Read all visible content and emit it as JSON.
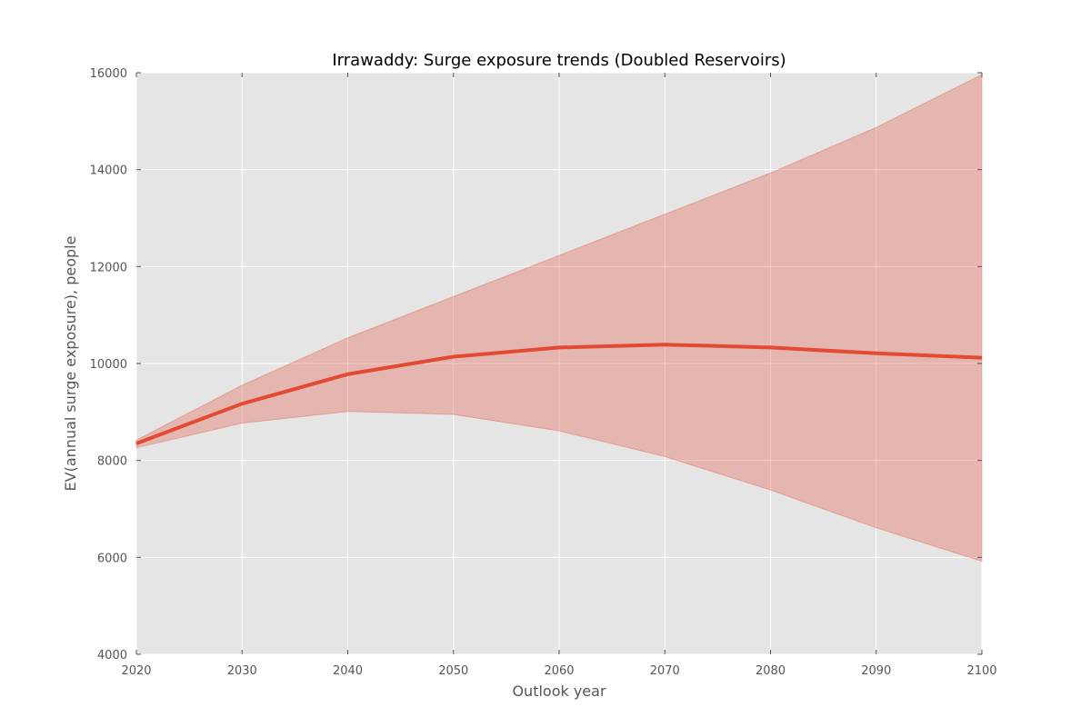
{
  "chart_data": {
    "type": "line",
    "title": "Irrawaddy: Surge exposure trends (Doubled Reservoirs)",
    "xlabel": "Outlook year",
    "ylabel": "EV(annual surge exposure), people",
    "xlim": [
      2020,
      2100
    ],
    "ylim": [
      4000,
      16000
    ],
    "x_ticks": [
      2020,
      2030,
      2040,
      2050,
      2060,
      2070,
      2080,
      2090,
      2100
    ],
    "y_ticks": [
      4000,
      6000,
      8000,
      10000,
      12000,
      14000,
      16000
    ],
    "grid": true,
    "x": [
      2020,
      2030,
      2040,
      2050,
      2060,
      2070,
      2080,
      2090,
      2100
    ],
    "series": [
      {
        "values": [
          8350,
          9170,
          9780,
          10140,
          10330,
          10390,
          10330,
          10210,
          10120
        ],
        "lower": [
          8260,
          8770,
          9010,
          8950,
          8610,
          8080,
          7390,
          6610,
          5920
        ],
        "upper": [
          8420,
          9550,
          10530,
          11380,
          12230,
          13080,
          13930,
          14870,
          15960
        ],
        "color": "#E24A33"
      }
    ],
    "colors": {
      "plot_background": "#E5E5E5",
      "grid": "#FFFFFF",
      "band_fill": "#E24A33",
      "line": "#E24A33"
    }
  }
}
